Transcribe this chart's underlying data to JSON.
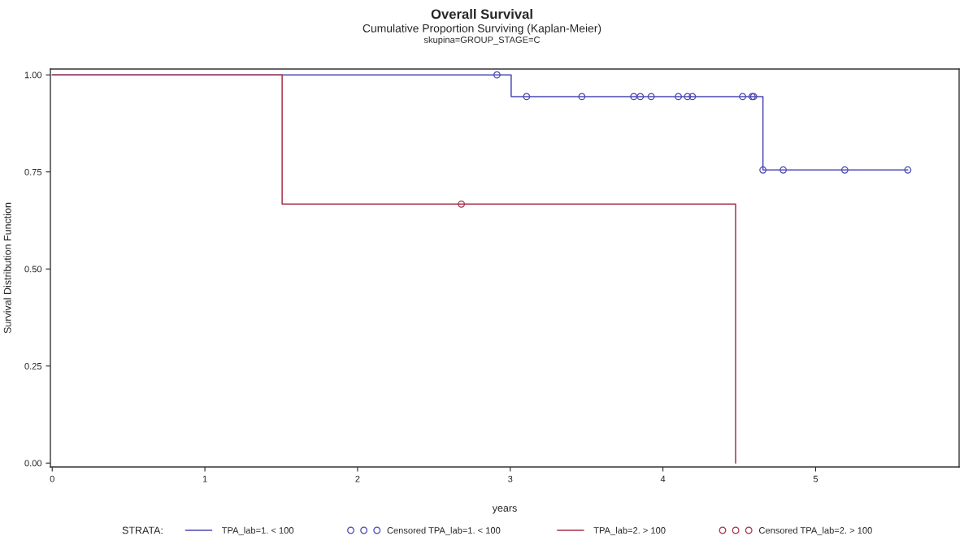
{
  "chart_data": {
    "type": "step",
    "title": "Overall Survival",
    "subtitle": "Cumulative Proportion Surviving (Kaplan-Meier)",
    "annotations": [
      "skupina=GROUP_STAGE=C"
    ],
    "xlabel": "years",
    "ylabel": "Survival Distribution Function",
    "legend_title": "STRATA:",
    "legend": "bottom",
    "grid": false,
    "xlim": [
      -0.012,
      5.94
    ],
    "xticks": [
      0,
      1,
      2,
      3,
      4,
      5
    ],
    "ylim": [
      -0.01,
      1.015
    ],
    "yticks": [
      {
        "value": 0,
        "label": "0.00"
      },
      {
        "value": 0.25,
        "label": "0.25"
      },
      {
        "value": 0.5,
        "label": "0.50"
      },
      {
        "value": 0.75,
        "label": "0.75"
      },
      {
        "value": 1,
        "label": "1.00"
      }
    ],
    "series": [
      {
        "name": "TPA_lab=1. < 100",
        "marker": "none",
        "color": "#4b4bb4",
        "x": [
          0,
          3.006,
          4.655,
          5.604
        ],
        "values": [
          1,
          0.944,
          0.755,
          0.755
        ]
      },
      {
        "name": "Censored TPA_lab=1. < 100",
        "type": "scatter",
        "marker": "circle",
        "color": "#4b4bb4",
        "x": [
          2.913,
          3.107,
          3.469,
          3.809,
          3.852,
          3.923,
          4.101,
          4.161,
          4.193,
          4.522,
          4.584,
          4.594,
          4.655,
          4.788,
          5.191,
          5.604
        ],
        "values": [
          1,
          0.944,
          0.944,
          0.944,
          0.944,
          0.944,
          0.944,
          0.944,
          0.944,
          0.944,
          0.944,
          0.944,
          0.755,
          0.755,
          0.755,
          0.755
        ]
      },
      {
        "name": "TPA_lab=2. > 100",
        "marker": "none",
        "color": "#a8324b",
        "x": [
          0,
          1.506,
          4.476
        ],
        "values": [
          1,
          0.667,
          0
        ]
      },
      {
        "name": "Censored TPA_lab=2. > 100",
        "type": "scatter",
        "marker": "circle",
        "color": "#a8324b",
        "x": [
          2.68
        ],
        "values": [
          0.667
        ]
      }
    ]
  }
}
